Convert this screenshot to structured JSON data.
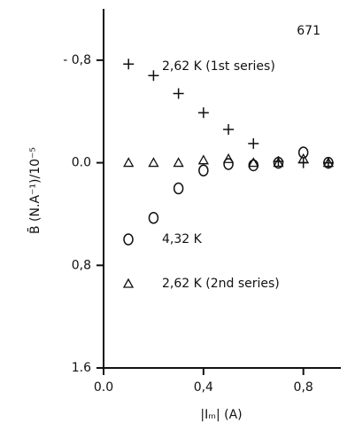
{
  "chart_data": {
    "type": "scatter",
    "annotation": "671",
    "x_label": "|Iₘ| (A)",
    "y_label": "B̄ (N.A⁻¹)/10⁻⁵",
    "xlim": [
      0,
      0.95
    ],
    "ylim": [
      1.6,
      -1.2
    ],
    "xticks": [
      {
        "value": 0,
        "label": "0.0"
      },
      {
        "value": 0.4,
        "label": "0,4"
      },
      {
        "value": 0.8,
        "label": "0,8"
      }
    ],
    "yticks": [
      {
        "value": -0.8,
        "label": "- 0,8"
      },
      {
        "value": 0,
        "label": "0.0"
      },
      {
        "value": 0.8,
        "label": "0,8"
      },
      {
        "value": 1.6,
        "label": "1.6"
      }
    ],
    "series": [
      {
        "name": "2,62 K (1st series)",
        "marker": "plus",
        "color": "#111111",
        "x": [
          0.1,
          0.2,
          0.3,
          0.4,
          0.5,
          0.6,
          0.7,
          0.8,
          0.9
        ],
        "values": [
          -0.77,
          -0.68,
          -0.54,
          -0.39,
          -0.26,
          -0.15,
          -0.01,
          0,
          0
        ]
      },
      {
        "name": "4,32 K",
        "marker": "circle",
        "color": "#111111",
        "x": [
          0.2,
          0.3,
          0.4,
          0.5,
          0.6,
          0.7,
          0.8,
          0.9
        ],
        "values": [
          0.43,
          0.2,
          0.06,
          0.01,
          0.02,
          0,
          -0.08,
          0
        ]
      },
      {
        "name": "2,62 K (2nd series)",
        "marker": "triangle",
        "color": "#111111",
        "x": [
          0.1,
          0.2,
          0.3,
          0.4,
          0.5,
          0.6,
          0.7,
          0.8,
          0.9
        ],
        "values": [
          0,
          0,
          0,
          -0.02,
          -0.03,
          0,
          0,
          -0.03,
          0
        ]
      }
    ]
  }
}
